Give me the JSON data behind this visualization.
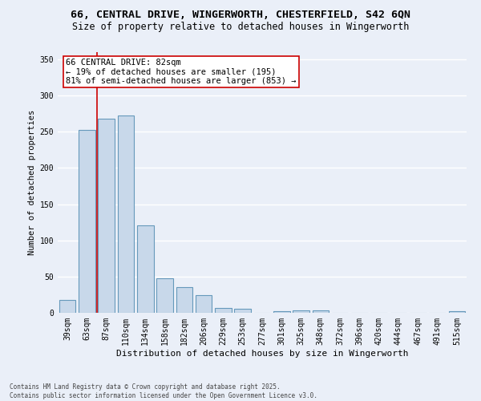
{
  "title_line1": "66, CENTRAL DRIVE, WINGERWORTH, CHESTERFIELD, S42 6QN",
  "title_line2": "Size of property relative to detached houses in Wingerworth",
  "xlabel": "Distribution of detached houses by size in Wingerworth",
  "ylabel": "Number of detached properties",
  "categories": [
    "39sqm",
    "63sqm",
    "87sqm",
    "110sqm",
    "134sqm",
    "158sqm",
    "182sqm",
    "206sqm",
    "229sqm",
    "253sqm",
    "277sqm",
    "301sqm",
    "325sqm",
    "348sqm",
    "372sqm",
    "396sqm",
    "420sqm",
    "444sqm",
    "467sqm",
    "491sqm",
    "515sqm"
  ],
  "values": [
    18,
    253,
    268,
    272,
    121,
    48,
    35,
    24,
    7,
    6,
    0,
    2,
    3,
    3,
    0,
    0,
    0,
    0,
    0,
    0,
    2
  ],
  "bar_color": "#c8d8ea",
  "bar_edge_color": "#6699bb",
  "bar_linewidth": 0.8,
  "vline_x": 1.5,
  "vline_color": "#cc0000",
  "annotation_text": "66 CENTRAL DRIVE: 82sqm\n← 19% of detached houses are smaller (195)\n81% of semi-detached houses are larger (853) →",
  "annotation_box_color": "#ffffff",
  "annotation_box_edge": "#cc0000",
  "annotation_fontsize": 7.5,
  "ylim": [
    0,
    360
  ],
  "yticks": [
    0,
    50,
    100,
    150,
    200,
    250,
    300,
    350
  ],
  "background_color": "#eaeff8",
  "grid_color": "#ffffff",
  "footnote": "Contains HM Land Registry data © Crown copyright and database right 2025.\nContains public sector information licensed under the Open Government Licence v3.0.",
  "title_fontsize": 9.5,
  "subtitle_fontsize": 8.5,
  "xlabel_fontsize": 8,
  "ylabel_fontsize": 7.5,
  "tick_fontsize": 7,
  "footnote_fontsize": 5.5
}
